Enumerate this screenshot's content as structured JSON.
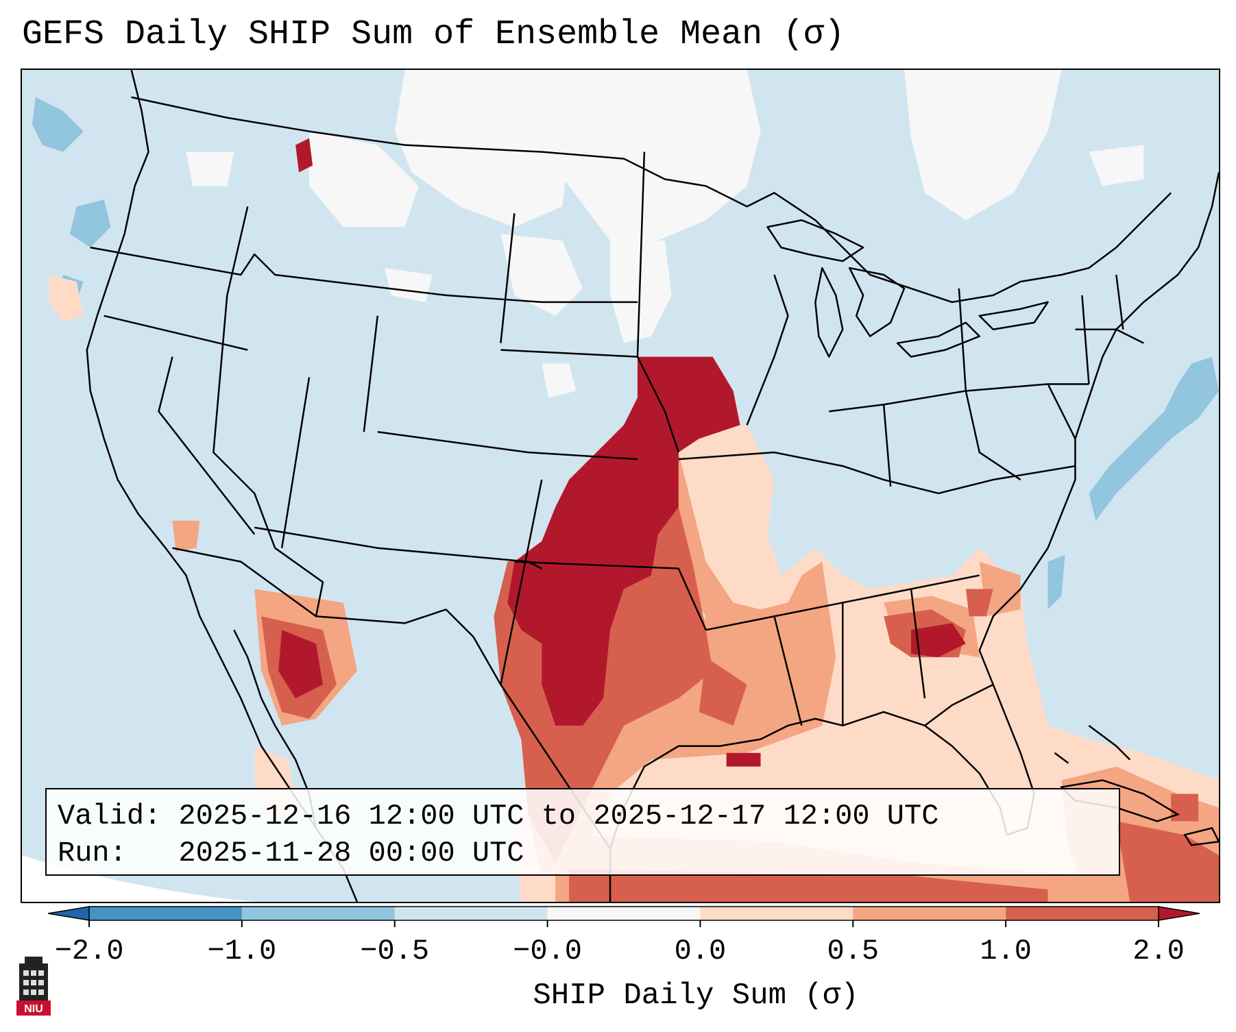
{
  "title": "GEFS Daily SHIP Sum of Ensemble Mean (σ)",
  "info": {
    "valid_line": "Valid: 2025-12-16 12:00 UTC to 2025-12-17 12:00 UTC",
    "run_line": "Run:   2025-11-28 00:00 UTC"
  },
  "colorbar": {
    "label": "SHIP Daily Sum (σ)",
    "ticks": [
      "−2.0",
      "−1.0",
      "−0.5",
      "−0.0",
      "0.0",
      "0.5",
      "1.0",
      "2.0"
    ],
    "bins": [
      {
        "range": "< -2.0",
        "color": "#2166ac"
      },
      {
        "range": "-2.0 to -1.0",
        "color": "#4393c3"
      },
      {
        "range": "-1.0 to -0.5",
        "color": "#92c5de"
      },
      {
        "range": "-0.5 to -0.0",
        "color": "#d1e5f0"
      },
      {
        "range": "-0.0 to 0.0",
        "color": "#f7f7f7"
      },
      {
        "range": "0.0 to 0.5",
        "color": "#fddbc7"
      },
      {
        "range": "0.5 to 1.0",
        "color": "#f4a582"
      },
      {
        "range": "1.0 to 2.0",
        "color": "#d6604d"
      },
      {
        "range": "> 2.0",
        "color": "#b2182b"
      }
    ]
  },
  "logo": {
    "text": "NIU",
    "color": "#c8102e"
  }
}
